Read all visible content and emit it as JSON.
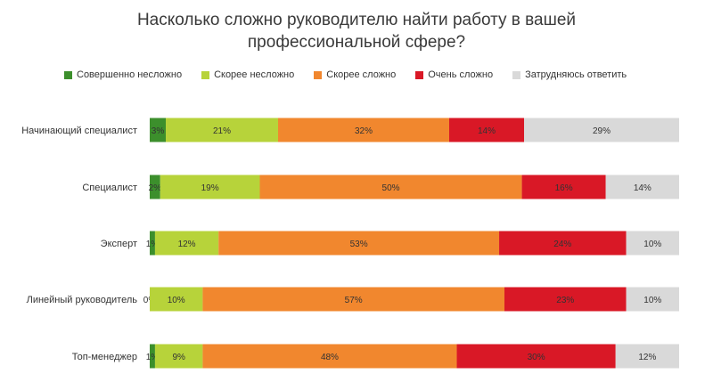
{
  "chart_data": {
    "type": "bar",
    "orientation": "horizontal",
    "stacked": true,
    "title_lines": [
      "Насколько сложно руководителю найти работу в вашей",
      "профессиональной сфере?"
    ],
    "categories": [
      "Начинающий специалист",
      "Специалист",
      "Эксперт",
      "Линейный руководитель",
      "Топ-менеджер"
    ],
    "series": [
      {
        "name": "Совершенно несложно",
        "color": "#3c8f2c",
        "values": [
          3,
          2,
          1,
          0,
          1
        ],
        "labels": [
          "3%",
          "2%",
          "1%",
          "0%",
          "1%"
        ]
      },
      {
        "name": "Скорее несложно",
        "color": "#b7d33a",
        "values": [
          21,
          19,
          12,
          10,
          9
        ],
        "labels": [
          "21%",
          "19%",
          "12%",
          "10%",
          "9%"
        ]
      },
      {
        "name": "Скорее сложно",
        "color": "#f1872e",
        "values": [
          32,
          50,
          53,
          57,
          48
        ],
        "labels": [
          "32%",
          "50%",
          "53%",
          "57%",
          "48%"
        ]
      },
      {
        "name": "Очень сложно",
        "color": "#d91826",
        "values": [
          14,
          16,
          24,
          23,
          30
        ],
        "labels": [
          "14%",
          "16%",
          "24%",
          "23%",
          "30%"
        ]
      },
      {
        "name": "Затрудняюсь ответить",
        "color": "#d9d9d9",
        "values": [
          29,
          14,
          10,
          10,
          12
        ],
        "labels": [
          "29%",
          "14%",
          "10%",
          "10%",
          "12%"
        ]
      }
    ],
    "legend_position": "top",
    "grid": false
  }
}
